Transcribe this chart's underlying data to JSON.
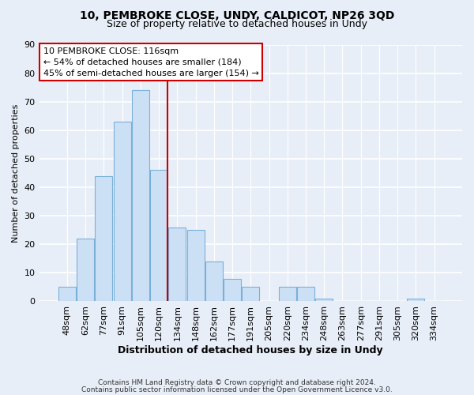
{
  "title1": "10, PEMBROKE CLOSE, UNDY, CALDICOT, NP26 3QD",
  "title2": "Size of property relative to detached houses in Undy",
  "xlabel": "Distribution of detached houses by size in Undy",
  "ylabel": "Number of detached properties",
  "bar_labels": [
    "48sqm",
    "62sqm",
    "77sqm",
    "91sqm",
    "105sqm",
    "120sqm",
    "134sqm",
    "148sqm",
    "162sqm",
    "177sqm",
    "191sqm",
    "205sqm",
    "220sqm",
    "234sqm",
    "248sqm",
    "263sqm",
    "277sqm",
    "291sqm",
    "305sqm",
    "320sqm",
    "334sqm"
  ],
  "bar_values": [
    5,
    22,
    44,
    63,
    74,
    46,
    26,
    25,
    14,
    8,
    5,
    0,
    5,
    5,
    1,
    0,
    0,
    0,
    0,
    1,
    0
  ],
  "bar_color": "#cce0f5",
  "bar_edge_color": "#7ab0d8",
  "vline_x": 5.47,
  "vline_color": "#cc0000",
  "annotation_title": "10 PEMBROKE CLOSE: 116sqm",
  "annotation_line1": "← 54% of detached houses are smaller (184)",
  "annotation_line2": "45% of semi-detached houses are larger (154) →",
  "annotation_box_color": "#ffffff",
  "annotation_box_edge": "#cc0000",
  "ylim": [
    0,
    90
  ],
  "yticks": [
    0,
    10,
    20,
    30,
    40,
    50,
    60,
    70,
    80,
    90
  ],
  "footer1": "Contains HM Land Registry data © Crown copyright and database right 2024.",
  "footer2": "Contains public sector information licensed under the Open Government Licence v3.0.",
  "bg_color": "#e8eef7",
  "grid_color": "#ffffff",
  "title_fontsize": 10,
  "subtitle_fontsize": 9
}
